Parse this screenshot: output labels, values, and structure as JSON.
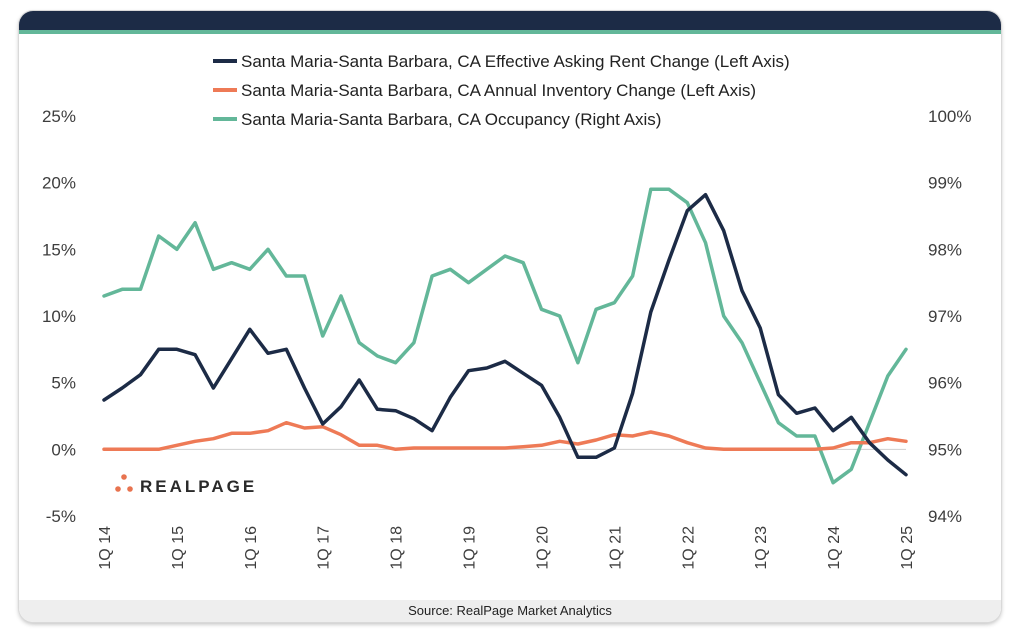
{
  "source": "Source: RealPage Market Analytics",
  "logo": {
    "text": "REALPAGE",
    "color": "#e8734f"
  },
  "colors": {
    "rent": "#1c2b46",
    "inventory": "#ee7a56",
    "occupancy": "#63b799",
    "header": "#1c2b46"
  },
  "chart_data": {
    "type": "line",
    "x": [
      "1Q 14",
      "2Q 14",
      "3Q 14",
      "4Q 14",
      "1Q 15",
      "2Q 15",
      "3Q 15",
      "4Q 15",
      "1Q 16",
      "2Q 16",
      "3Q 16",
      "4Q 16",
      "1Q 17",
      "2Q 17",
      "3Q 17",
      "4Q 17",
      "1Q 18",
      "2Q 18",
      "3Q 18",
      "4Q 18",
      "1Q 19",
      "2Q 19",
      "3Q 19",
      "4Q 19",
      "1Q 20",
      "2Q 20",
      "3Q 20",
      "4Q 20",
      "1Q 21",
      "2Q 21",
      "3Q 21",
      "4Q 21",
      "1Q 22",
      "2Q 22",
      "3Q 22",
      "4Q 22",
      "1Q 23",
      "2Q 23",
      "3Q 23",
      "4Q 23",
      "1Q 24",
      "2Q 24",
      "3Q 24",
      "4Q 24",
      "1Q 25"
    ],
    "x_tick_labels": [
      "1Q 14",
      "1Q 15",
      "1Q 16",
      "1Q 17",
      "1Q 18",
      "1Q 19",
      "1Q 20",
      "1Q 21",
      "1Q 22",
      "1Q 23",
      "1Q 24",
      "1Q 25"
    ],
    "left_axis": {
      "ylim": [
        -5,
        25
      ],
      "tick_labels": [
        "-5%",
        "0%",
        "5%",
        "10%",
        "15%",
        "20%",
        "25%"
      ]
    },
    "right_axis": {
      "ylim": [
        94,
        100
      ],
      "tick_labels": [
        "94%",
        "95%",
        "96%",
        "97%",
        "98%",
        "99%",
        "100%"
      ]
    },
    "legend_position": "top",
    "series": [
      {
        "name": "Santa Maria-Santa Barbara, CA Effective Asking Rent Change (Left Axis)",
        "axis": "left",
        "values": [
          3.7,
          4.6,
          5.6,
          7.5,
          7.5,
          7.1,
          4.6,
          6.8,
          9.0,
          7.2,
          7.5,
          4.6,
          1.9,
          3.2,
          5.2,
          3.0,
          2.9,
          2.3,
          1.4,
          3.9,
          5.9,
          6.1,
          6.6,
          5.7,
          4.8,
          2.4,
          -0.6,
          -0.6,
          0.1,
          4.2,
          10.3,
          14.2,
          17.9,
          19.1,
          16.4,
          11.9,
          9.1,
          4.1,
          2.7,
          3.1,
          1.4,
          2.4,
          0.5,
          -0.8,
          -1.9
        ]
      },
      {
        "name": "Santa Maria-Santa Barbara, CA Annual Inventory Change (Left Axis)",
        "axis": "left",
        "values": [
          0.0,
          0.0,
          0.0,
          0.0,
          0.3,
          0.6,
          0.8,
          1.2,
          1.2,
          1.4,
          2.0,
          1.6,
          1.7,
          1.1,
          0.3,
          0.3,
          0.0,
          0.1,
          0.1,
          0.1,
          0.1,
          0.1,
          0.1,
          0.2,
          0.3,
          0.6,
          0.4,
          0.7,
          1.1,
          1.0,
          1.3,
          1.0,
          0.5,
          0.1,
          0.0,
          0.0,
          0.0,
          0.0,
          0.0,
          0.0,
          0.1,
          0.5,
          0.5,
          0.8,
          0.6
        ]
      },
      {
        "name": "Santa Maria-Santa Barbara, CA Occupancy (Right Axis)",
        "axis": "right",
        "values": [
          97.3,
          97.4,
          97.4,
          98.2,
          98.0,
          98.4,
          97.7,
          97.8,
          97.7,
          98.0,
          97.6,
          97.6,
          96.7,
          97.3,
          96.6,
          96.4,
          96.3,
          96.6,
          97.6,
          97.7,
          97.5,
          97.7,
          97.9,
          97.8,
          97.1,
          97.0,
          96.3,
          97.1,
          97.2,
          97.6,
          98.9,
          98.9,
          98.7,
          98.1,
          97.0,
          96.6,
          96.0,
          95.4,
          95.2,
          95.2,
          94.5,
          94.7,
          95.4,
          96.1,
          96.5
        ]
      }
    ]
  }
}
